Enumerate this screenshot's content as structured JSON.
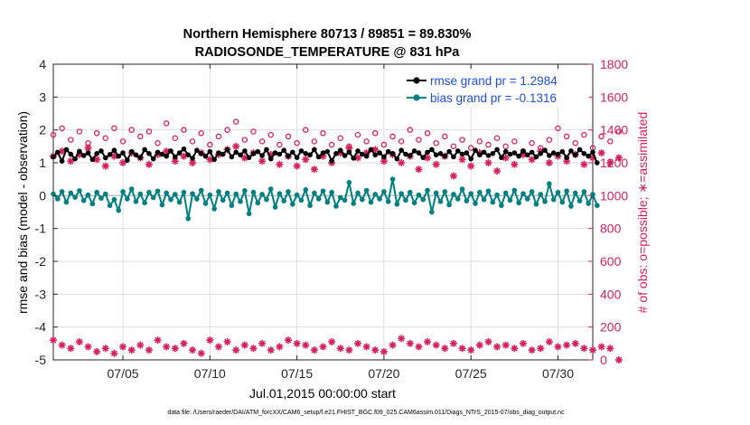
{
  "chart_data": {
    "type": "line",
    "title": [
      "Northern Hemisphere 80713 / 89851 = 89.830%",
      "RADIOSONDE_TEMPERATURE @ 831 hPa"
    ],
    "xlabel": "Jul.01,2015 00:00:00 start",
    "ylabel_left": "rmse and bias (model - observation)",
    "ylabel_right": "# of obs: o=possible; ∗=assimilated",
    "footer": "data file: /Users/raeder/DAI/ATM_forcXX/CAM6_setup/f.e21.FHIST_BGC.f09_025.CAM6assim.011/Diags_NTrS_2015-07/obs_diag_output.nc",
    "xlim": [
      1,
      32
    ],
    "ylim_left": [
      -5,
      4
    ],
    "ylim_right": [
      0,
      1800
    ],
    "x_ticks": [
      5,
      10,
      15,
      20,
      25,
      30
    ],
    "x_tick_labels": [
      "07/05",
      "07/10",
      "07/15",
      "07/20",
      "07/25",
      "07/30"
    ],
    "y_left_ticks": [
      -5,
      -4,
      -3,
      -2,
      -1,
      0,
      1,
      2,
      3,
      4
    ],
    "y_right_ticks": [
      0,
      200,
      400,
      600,
      800,
      1000,
      1200,
      1400,
      1600,
      1800
    ],
    "grid": true,
    "legend_position": "top-right",
    "x_start": 1.0,
    "x_step": 0.25,
    "series": [
      {
        "name": "rmse grand pr = 1.2984",
        "axis": "left",
        "color": "#000000",
        "marker": "dot",
        "values": [
          1.18,
          1.32,
          1.05,
          1.4,
          1.26,
          1.12,
          1.35,
          1.22,
          1.3,
          1.1,
          1.28,
          1.36,
          1.15,
          1.25,
          1.38,
          1.2,
          1.3,
          1.08,
          1.34,
          1.24,
          1.16,
          1.4,
          1.28,
          1.12,
          1.32,
          1.26,
          1.2,
          1.36,
          1.18,
          1.3,
          1.42,
          1.24,
          1.14,
          1.38,
          1.28,
          1.2,
          1.34,
          1.1,
          1.3,
          1.26,
          1.4,
          1.18,
          1.32,
          1.24,
          1.36,
          1.16,
          1.28,
          1.34,
          1.22,
          1.4,
          1.12,
          1.3,
          1.26,
          1.38,
          1.2,
          1.32,
          1.16,
          1.36,
          1.28,
          1.24,
          1.4,
          1.18,
          1.3,
          1.34,
          1.06,
          1.28,
          1.38,
          1.22,
          1.32,
          1.14,
          1.36,
          1.26,
          1.2,
          1.4,
          1.24,
          1.3,
          1.18,
          1.34,
          1.28,
          1.12,
          1.38,
          1.26,
          1.22,
          1.36,
          1.3,
          1.16,
          1.32,
          1.4,
          1.24,
          1.28,
          1.2,
          1.34,
          1.18,
          1.36,
          1.26,
          1.3,
          1.12,
          1.38,
          1.24,
          1.32,
          1.22,
          1.28,
          1.4,
          1.16,
          1.34,
          1.26,
          1.3,
          1.2,
          1.36,
          1.24,
          1.32,
          1.18,
          1.28,
          1.38,
          1.22,
          1.3,
          1.26,
          1.34,
          1.16,
          1.36,
          1.24,
          1.4,
          1.28,
          1.2,
          1.32,
          1.0
        ]
      },
      {
        "name": "bias grand pr = -0.1316",
        "axis": "left",
        "color": "#008080",
        "marker": "dot",
        "values": [
          0.05,
          -0.1,
          0.12,
          -0.2,
          0.08,
          -0.05,
          0.15,
          -0.15,
          0.02,
          -0.25,
          0.1,
          -0.08,
          0.05,
          -0.3,
          -0.12,
          -0.45,
          0.12,
          -0.1,
          0.2,
          -0.18,
          0.05,
          -0.22,
          0.1,
          -0.06,
          0.14,
          -0.28,
          0.08,
          -0.12,
          0.04,
          -0.2,
          0.1,
          -0.7,
          0.06,
          -0.1,
          0.16,
          -0.24,
          0.02,
          -0.4,
          0.12,
          -0.14,
          0.08,
          -0.3,
          0.05,
          -0.18,
          0.15,
          -0.55,
          0.1,
          -0.22,
          0.04,
          -0.12,
          0.2,
          -0.35,
          0.06,
          -0.16,
          0.12,
          -0.26,
          0.02,
          -0.14,
          0.18,
          -0.3,
          0.08,
          -0.1,
          0.14,
          -0.2,
          0.1,
          -0.32,
          -0.06,
          -0.14,
          0.4,
          -0.24,
          0.08,
          -0.12,
          0.16,
          -0.2,
          0.04,
          -0.1,
          0.12,
          -0.18,
          0.5,
          -0.26,
          0.06,
          -0.14,
          0.1,
          -0.22,
          0.02,
          -0.12,
          0.16,
          -0.5,
          0.08,
          -0.18,
          0.12,
          -0.28,
          0.04,
          -0.1,
          0.2,
          -0.16,
          0.06,
          -0.24,
          0.1,
          -0.12,
          0.14,
          -0.2,
          0.02,
          -0.3,
          0.08,
          -0.14,
          0.16,
          -0.22,
          0.06,
          -0.1,
          0.12,
          -0.26,
          0.04,
          -0.18,
          0.36,
          -0.12,
          0.1,
          -0.2,
          0.14,
          -0.32,
          0.08,
          -0.16,
          0.12,
          -0.24,
          0.04,
          -0.3
        ]
      },
      {
        "name": "possible",
        "axis": "right",
        "color": "#d6205e",
        "marker": "circle",
        "x_start": 1.0,
        "x_step": 0.5,
        "values": [
          1370,
          1410,
          1340,
          1390,
          1320,
          1380,
          1350,
          1410,
          1330,
          1400,
          1360,
          1390,
          1320,
          1440,
          1350,
          1400,
          1330,
          1380,
          1310,
          1360,
          1400,
          1450,
          1340,
          1390,
          1330,
          1370,
          1310,
          1360,
          1320,
          1400,
          1330,
          1380,
          1310,
          1350,
          1300,
          1370,
          1330,
          1380,
          1310,
          1360,
          1330,
          1400,
          1340,
          1380,
          1320,
          1360,
          1300,
          1340,
          1290,
          1330,
          1310,
          1350,
          1300,
          1330,
          1270,
          1320,
          1290,
          1340,
          1410,
          1360,
          1320,
          1370,
          1290,
          1360,
          1330,
          1390
        ]
      },
      {
        "name": "assimilated",
        "axis": "right",
        "color": "#d6205e",
        "marker": "star",
        "x_start": 1.0,
        "x_step": 0.5,
        "values": [
          1240,
          1270,
          1210,
          1250,
          1290,
          1220,
          1180,
          1240,
          1200,
          1260,
          1230,
          1190,
          1250,
          1270,
          1210,
          1240,
          1200,
          1260,
          1220,
          1250,
          1280,
          1300,
          1230,
          1260,
          1210,
          1250,
          1190,
          1240,
          1180,
          1220,
          1160,
          1240,
          1200,
          1260,
          1290,
          1230,
          1260,
          1280,
          1210,
          1250,
          1200,
          1240,
          1160,
          1230,
          1190,
          1240,
          1120,
          1220,
          1180,
          1260,
          1200,
          1150,
          1230,
          1190,
          1250,
          1220,
          1270,
          1200,
          1240,
          1210,
          1250,
          1190,
          1230,
          1260,
          1200,
          1230
        ],
        "low_values": [
          120,
          90,
          70,
          110,
          80,
          50,
          70,
          40,
          80,
          60,
          90,
          60,
          120,
          80,
          70,
          100,
          60,
          40,
          120,
          80,
          110,
          60,
          90,
          70,
          100,
          60,
          80,
          120,
          100,
          90,
          60,
          80,
          110,
          70,
          60,
          100,
          80,
          60,
          50,
          90,
          130,
          100,
          80,
          110,
          90,
          70,
          100,
          70,
          60,
          90,
          110,
          80,
          90,
          70,
          100,
          60,
          70,
          110,
          80,
          90,
          100,
          70,
          60,
          80,
          70,
          0
        ]
      }
    ]
  }
}
